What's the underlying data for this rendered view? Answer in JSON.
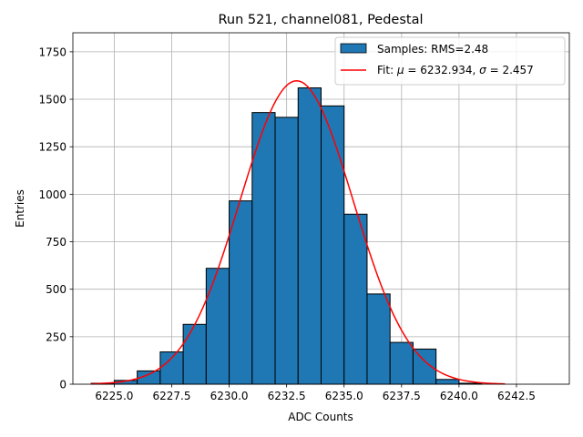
{
  "chart_data": {
    "type": "bar",
    "title": "Run 521, channel081, Pedestal",
    "xlabel": "ADC Counts",
    "ylabel": "Entries",
    "xlim": [
      6223.2,
      6244.8
    ],
    "ylim": [
      0,
      1850
    ],
    "xticks": [
      6225.0,
      6227.5,
      6230.0,
      6232.5,
      6235.0,
      6237.5,
      6240.0,
      6242.5
    ],
    "xtick_labels": [
      "6225.0",
      "6227.5",
      "6230.0",
      "6232.5",
      "6235.0",
      "6237.5",
      "6240.0",
      "6242.5"
    ],
    "yticks": [
      0,
      250,
      500,
      750,
      1000,
      1250,
      1500,
      1750
    ],
    "ytick_labels": [
      "0",
      "250",
      "500",
      "750",
      "1000",
      "1250",
      "1500",
      "1750"
    ],
    "grid": true,
    "legend_position": "top-right",
    "series": [
      {
        "name": "Samples: RMS=2.48",
        "type": "histogram",
        "color": "#1f77b4",
        "edge_color": "#000000",
        "bins": [
          {
            "x0": 6224.0,
            "x1": 6225.0,
            "count": 5
          },
          {
            "x0": 6225.0,
            "x1": 6226.0,
            "count": 20
          },
          {
            "x0": 6226.0,
            "x1": 6227.0,
            "count": 70
          },
          {
            "x0": 6227.0,
            "x1": 6228.0,
            "count": 170
          },
          {
            "x0": 6228.0,
            "x1": 6229.0,
            "count": 315
          },
          {
            "x0": 6229.0,
            "x1": 6230.0,
            "count": 610
          },
          {
            "x0": 6230.0,
            "x1": 6231.0,
            "count": 965
          },
          {
            "x0": 6231.0,
            "x1": 6232.0,
            "count": 1430
          },
          {
            "x0": 6232.0,
            "x1": 6233.0,
            "count": 1405
          },
          {
            "x0": 6233.0,
            "x1": 6234.0,
            "count": 1560
          },
          {
            "x0": 6234.0,
            "x1": 6235.0,
            "count": 1465
          },
          {
            "x0": 6235.0,
            "x1": 6236.0,
            "count": 895
          },
          {
            "x0": 6236.0,
            "x1": 6237.0,
            "count": 475
          },
          {
            "x0": 6237.0,
            "x1": 6238.0,
            "count": 220
          },
          {
            "x0": 6238.0,
            "x1": 6239.0,
            "count": 185
          },
          {
            "x0": 6239.0,
            "x1": 6240.0,
            "count": 25
          },
          {
            "x0": 6240.0,
            "x1": 6241.0,
            "count": 5
          }
        ]
      },
      {
        "name": "Fit: μ = 6232.934, σ = 2.457",
        "name_prefix": "Fit: ",
        "mu_symbol": "μ",
        "mu_text": " = 6232.934, ",
        "sigma_symbol": "σ",
        "sigma_text": " = 2.457",
        "type": "line",
        "color": "#ff0000",
        "mu": 6232.934,
        "sigma": 2.457,
        "amplitude": 1597,
        "x_range": [
          6224.0,
          6242.0
        ]
      }
    ]
  }
}
